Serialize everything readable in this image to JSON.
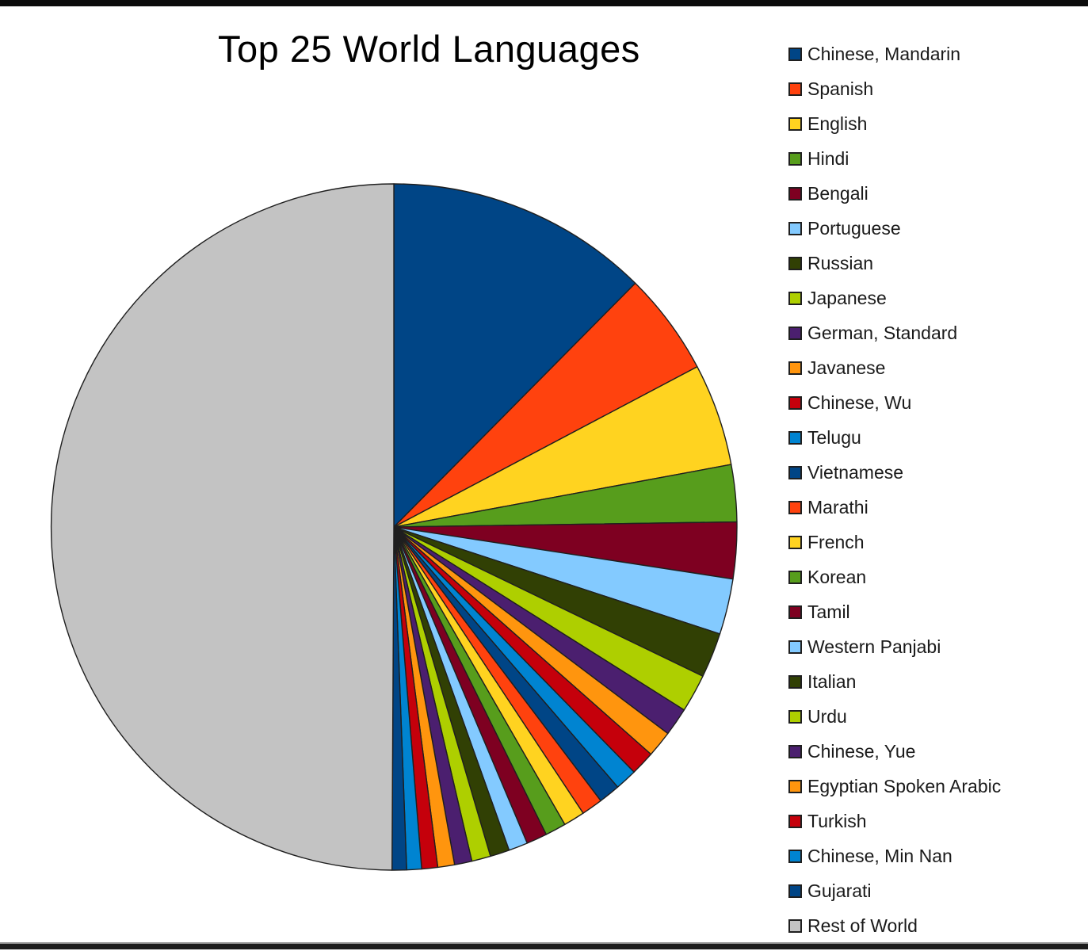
{
  "page": {
    "background": "#ffffff",
    "top_bar_color": "#0b0b0b",
    "bottom_bar_color": "#1c1c1c"
  },
  "chart_data": {
    "type": "pie",
    "title": "Top 25 World Languages",
    "legend_position": "right",
    "legend_marker": "square",
    "start_angle_deg": -90,
    "direction": "clockwise",
    "outline_color": "#1f1f1f",
    "slices": [
      {
        "label": "Chinese, Mandarin",
        "share_percent": 12.43,
        "color": "#004586"
      },
      {
        "label": "Spanish",
        "share_percent": 4.84,
        "color": "#FF420E"
      },
      {
        "label": "English",
        "share_percent": 4.82,
        "color": "#FFD320"
      },
      {
        "label": "Hindi",
        "share_percent": 2.68,
        "color": "#579D1C"
      },
      {
        "label": "Bengali",
        "share_percent": 2.66,
        "color": "#7E0021"
      },
      {
        "label": "Portuguese",
        "share_percent": 2.62,
        "color": "#83CAFF"
      },
      {
        "label": "Russian",
        "share_percent": 2.12,
        "color": "#314004"
      },
      {
        "label": "Japanese",
        "share_percent": 1.79,
        "color": "#AECF00"
      },
      {
        "label": "German, Standard",
        "share_percent": 1.33,
        "color": "#4B1F6F"
      },
      {
        "label": "Javanese",
        "share_percent": 1.24,
        "color": "#FF950E"
      },
      {
        "label": "Chinese, Wu",
        "share_percent": 1.14,
        "color": "#C5000B"
      },
      {
        "label": "Telugu",
        "share_percent": 1.03,
        "color": "#0084D1"
      },
      {
        "label": "Vietnamese",
        "share_percent": 1.01,
        "color": "#004586"
      },
      {
        "label": "Marathi",
        "share_percent": 1.0,
        "color": "#FF420E"
      },
      {
        "label": "French",
        "share_percent": 1.0,
        "color": "#FFD320"
      },
      {
        "label": "Korean",
        "share_percent": 0.98,
        "color": "#579D1C"
      },
      {
        "label": "Tamil",
        "share_percent": 0.97,
        "color": "#7E0021"
      },
      {
        "label": "Western Panjabi",
        "share_percent": 0.9,
        "color": "#83CAFF"
      },
      {
        "label": "Italian",
        "share_percent": 0.91,
        "color": "#314004"
      },
      {
        "label": "Urdu",
        "share_percent": 0.89,
        "color": "#AECF00"
      },
      {
        "label": "Chinese, Yue",
        "share_percent": 0.82,
        "color": "#4B1F6F"
      },
      {
        "label": "Egyptian Spoken Arabic",
        "share_percent": 0.79,
        "color": "#FF950E"
      },
      {
        "label": "Turkish",
        "share_percent": 0.75,
        "color": "#C5000B"
      },
      {
        "label": "Chinese, Min Nan",
        "share_percent": 0.7,
        "color": "#0084D1"
      },
      {
        "label": "Gujarati",
        "share_percent": 0.68,
        "color": "#004586"
      },
      {
        "label": "Rest of World",
        "share_percent": 49.93,
        "color": "#C3C3C3"
      }
    ]
  }
}
